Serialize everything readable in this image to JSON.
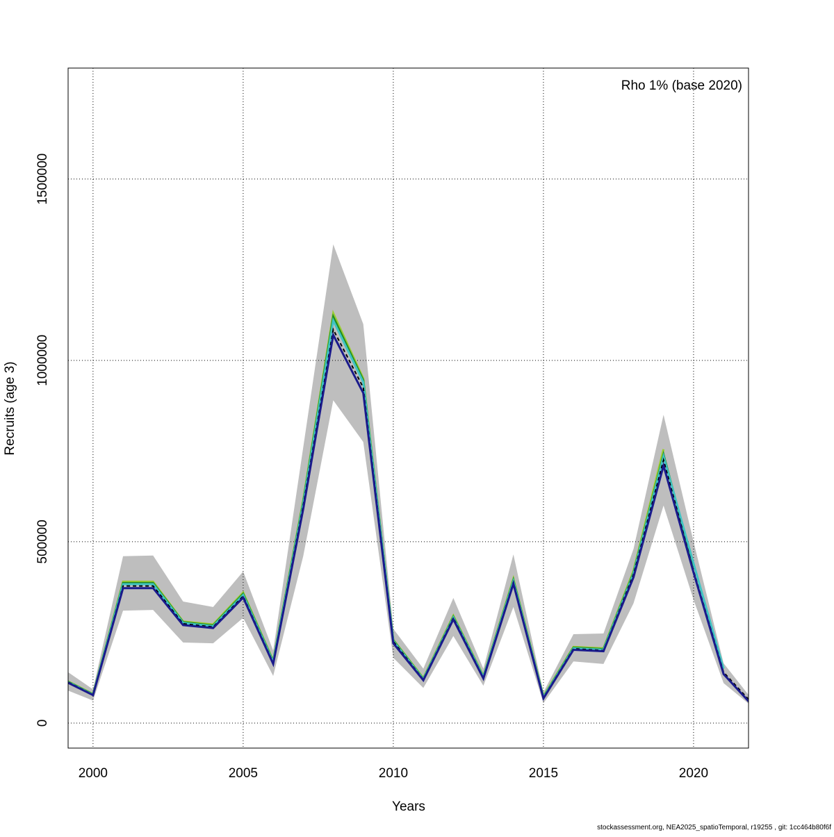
{
  "chart_data": {
    "type": "line",
    "xlabel": "Years",
    "ylabel": "Recruits (age 3)",
    "annotation": "Rho 1% (base 2020)",
    "footer": "stockassessment.org, NEA2025_spatioTemporal, r19255 , git: 1cc464b80f6f",
    "x": [
      1999,
      2000,
      2001,
      2002,
      2003,
      2004,
      2005,
      2006,
      2007,
      2008,
      2009,
      2010,
      2011,
      2012,
      2013,
      2014,
      2015,
      2016,
      2017,
      2018,
      2019,
      2020,
      2021,
      2022
    ],
    "band": {
      "color": "#bebebe",
      "low": [
        95000,
        62000,
        310000,
        312000,
        222000,
        220000,
        290000,
        130000,
        460000,
        890000,
        775000,
        180000,
        97000,
        240000,
        103000,
        320000,
        55000,
        170000,
        163000,
        330000,
        600000,
        340000,
        110000,
        42000
      ],
      "high": [
        150000,
        93000,
        460000,
        462000,
        335000,
        320000,
        418000,
        200000,
        760000,
        1320000,
        1100000,
        260000,
        150000,
        345000,
        150000,
        465000,
        85000,
        245000,
        247000,
        480000,
        850000,
        500000,
        165000,
        60000
      ]
    },
    "series": [
      {
        "color": "#9acd32",
        "dash": false,
        "values": [
          122000,
          80000,
          390000,
          390000,
          280000,
          272000,
          360000,
          172000,
          615000,
          1130000,
          950000,
          230000,
          124000,
          296000,
          130000,
          398000,
          74000,
          210000,
          206000,
          420000,
          755000,
          null,
          null,
          null
        ]
      },
      {
        "color": "#228b22",
        "dash": false,
        "values": [
          121000,
          79000,
          386000,
          386000,
          278000,
          269000,
          356000,
          170000,
          610000,
          1120000,
          945000,
          228000,
          122000,
          293000,
          128000,
          394000,
          72000,
          208000,
          204000,
          415000,
          740000,
          430000,
          null,
          null
        ]
      },
      {
        "color": "#40c4c4",
        "dash": false,
        "values": [
          120000,
          78000,
          383000,
          383000,
          276000,
          267000,
          353000,
          168000,
          605000,
          1110000,
          940000,
          226000,
          121000,
          291000,
          127000,
          391000,
          71000,
          206000,
          202000,
          412000,
          735000,
          440000,
          150000,
          null
        ]
      },
      {
        "color": "#000000",
        "dash": true,
        "values": [
          120000,
          78000,
          378000,
          378000,
          274000,
          265000,
          350000,
          166000,
          600000,
          1085000,
          925000,
          225000,
          120000,
          290000,
          125000,
          388000,
          70000,
          205000,
          200000,
          410000,
          725000,
          420000,
          140000,
          50000
        ]
      },
      {
        "color": "#1a1a8c",
        "dash": false,
        "values": [
          118000,
          77000,
          372000,
          372000,
          270000,
          262000,
          346000,
          163000,
          590000,
          1070000,
          910000,
          220000,
          118000,
          286000,
          123000,
          384000,
          68000,
          202000,
          198000,
          402000,
          710000,
          415000,
          135000,
          45000
        ]
      }
    ],
    "xlim": [
      1999.17,
      2021.83
    ],
    "ylim": [
      -69000,
      1806000
    ],
    "xticks": [
      2000,
      2005,
      2010,
      2015,
      2020
    ],
    "yticks": [
      0,
      500000,
      1000000,
      1500000
    ],
    "grid": true
  }
}
